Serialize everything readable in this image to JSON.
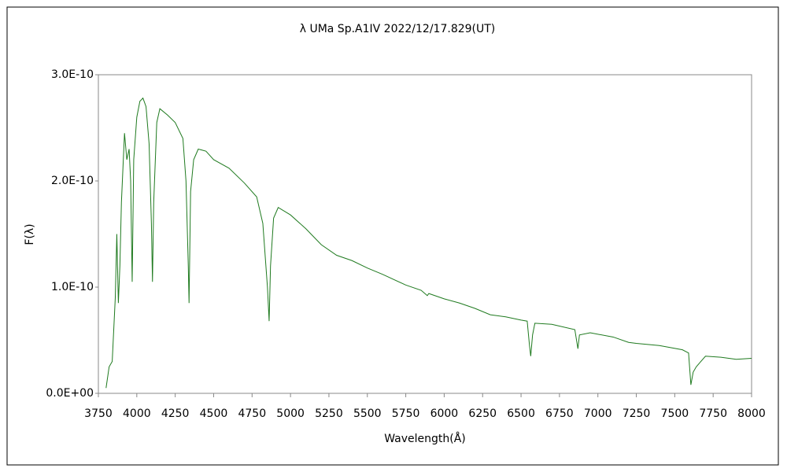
{
  "chart_data": {
    "type": "line",
    "title": "λ UMa   Sp.A1IV   2022/12/17.829(UT)",
    "x_label": "Wavelength(Å)",
    "y_label": "F(λ)",
    "xlim": [
      3750,
      8000
    ],
    "xticks": [
      3750,
      4000,
      4250,
      4500,
      4750,
      5000,
      5250,
      5500,
      5750,
      6000,
      6250,
      6500,
      6750,
      7000,
      7250,
      7500,
      7750,
      8000
    ],
    "ylim": [
      0,
      3e-10
    ],
    "yticks": [
      {
        "value": 0,
        "label": "0.0E+00"
      },
      {
        "value": 1e-10,
        "label": "1.0E-10"
      },
      {
        "value": 2e-10,
        "label": "2.0E-10"
      },
      {
        "value": 3e-10,
        "label": "3.0E-10"
      }
    ],
    "grid": false,
    "series": [
      {
        "color": "#1f7a1f",
        "x": [
          3800,
          3820,
          3840,
          3860,
          3870,
          3880,
          3890,
          3900,
          3920,
          3935,
          3950,
          3960,
          3970,
          3980,
          4000,
          4020,
          4040,
          4060,
          4080,
          4095,
          4102,
          4110,
          4130,
          4150,
          4200,
          4250,
          4300,
          4320,
          4335,
          4340,
          4350,
          4370,
          4400,
          4450,
          4500,
          4600,
          4700,
          4780,
          4820,
          4850,
          4861,
          4870,
          4890,
          4920,
          5000,
          5100,
          5200,
          5300,
          5400,
          5500,
          5600,
          5750,
          5850,
          5890,
          5900,
          6000,
          6100,
          6200,
          6300,
          6400,
          6500,
          6540,
          6555,
          6563,
          6575,
          6590,
          6700,
          6850,
          6870,
          6880,
          6950,
          7100,
          7200,
          7250,
          7400,
          7550,
          7590,
          7605,
          7620,
          7640,
          7700,
          7800,
          7900,
          8000
        ],
        "values": [
          5e-12,
          2.5e-11,
          3e-11,
          9e-11,
          1.5e-10,
          8.5e-11,
          1.2e-10,
          1.8e-10,
          2.45e-10,
          2.2e-10,
          2.3e-10,
          2e-10,
          1.05e-10,
          2.2e-10,
          2.6e-10,
          2.75e-10,
          2.78e-10,
          2.7e-10,
          2.35e-10,
          1.6e-10,
          1.05e-10,
          1.8e-10,
          2.55e-10,
          2.68e-10,
          2.62e-10,
          2.55e-10,
          2.4e-10,
          2e-10,
          1.2e-10,
          8.5e-11,
          1.9e-10,
          2.2e-10,
          2.3e-10,
          2.28e-10,
          2.2e-10,
          2.12e-10,
          1.98e-10,
          1.85e-10,
          1.6e-10,
          1e-10,
          6.8e-11,
          1.2e-10,
          1.65e-10,
          1.75e-10,
          1.68e-10,
          1.55e-10,
          1.4e-10,
          1.3e-10,
          1.25e-10,
          1.18e-10,
          1.12e-10,
          1.02e-10,
          9.7e-11,
          9.2e-11,
          9.4e-11,
          8.9e-11,
          8.5e-11,
          8e-11,
          7.4e-11,
          7.2e-11,
          6.9e-11,
          6.8e-11,
          4.5e-11,
          3.5e-11,
          5.5e-11,
          6.6e-11,
          6.5e-11,
          6e-11,
          4.2e-11,
          5.5e-11,
          5.7e-11,
          5.3e-11,
          4.8e-11,
          4.7e-11,
          4.5e-11,
          4.1e-11,
          3.8e-11,
          8e-12,
          2e-11,
          2.5e-11,
          3.5e-11,
          3.4e-11,
          3.2e-11,
          3.3e-11
        ]
      }
    ]
  }
}
